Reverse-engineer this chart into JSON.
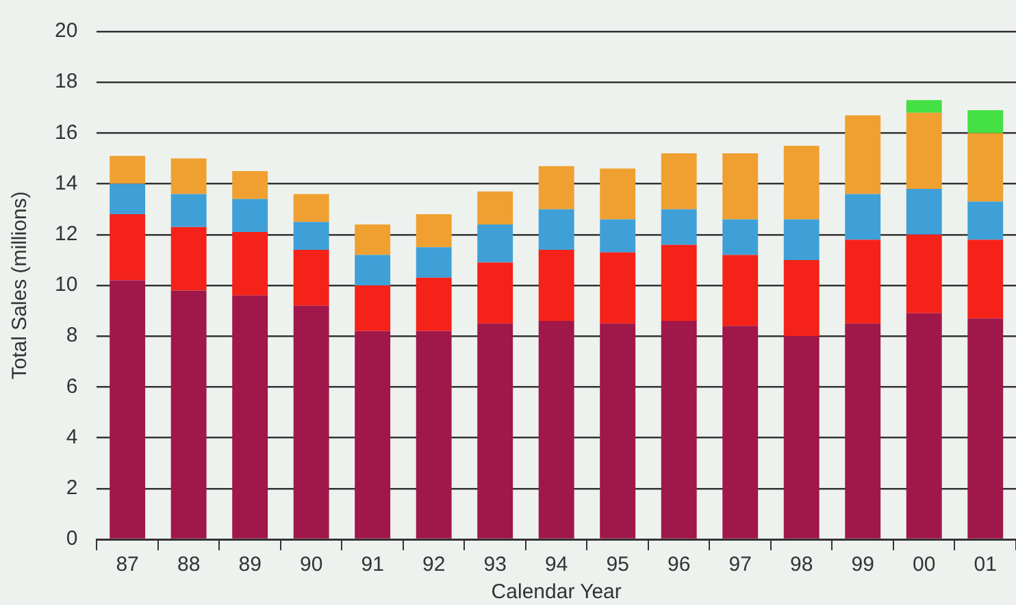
{
  "chart_data": {
    "type": "bar",
    "stacked": true,
    "xlabel": "Calendar Year",
    "ylabel": "Total Sales (millions)",
    "categories": [
      "87",
      "88",
      "89",
      "90",
      "91",
      "92",
      "93",
      "94",
      "95",
      "96",
      "97",
      "98",
      "99",
      "00",
      "01"
    ],
    "series": [
      {
        "color": "#a0174a",
        "values": [
          10.2,
          9.8,
          9.6,
          9.2,
          8.2,
          8.2,
          8.5,
          8.6,
          8.5,
          8.6,
          8.4,
          8.0,
          8.5,
          8.9,
          8.7
        ]
      },
      {
        "color": "#f42218",
        "values": [
          2.6,
          2.5,
          2.5,
          2.2,
          1.8,
          2.1,
          2.4,
          2.8,
          2.8,
          3.0,
          2.8,
          3.0,
          3.3,
          3.1,
          3.1
        ]
      },
      {
        "color": "#3fa0d8",
        "values": [
          1.2,
          1.3,
          1.3,
          1.1,
          1.2,
          1.2,
          1.5,
          1.6,
          1.3,
          1.4,
          1.4,
          1.6,
          1.8,
          1.8,
          1.5
        ]
      },
      {
        "color": "#f0a030",
        "values": [
          1.1,
          1.4,
          1.1,
          1.1,
          1.2,
          1.3,
          1.3,
          1.7,
          2.0,
          2.2,
          2.6,
          2.9,
          3.1,
          3.0,
          2.7
        ]
      },
      {
        "color": "#44e044",
        "values": [
          null,
          null,
          null,
          null,
          null,
          null,
          null,
          null,
          null,
          null,
          null,
          null,
          null,
          0.5,
          0.9
        ]
      }
    ],
    "ylim": [
      0,
      20
    ],
    "yticks": [
      0,
      2,
      4,
      6,
      8,
      10,
      12,
      14,
      16,
      18,
      20
    ],
    "grid": "y",
    "legend": false
  }
}
